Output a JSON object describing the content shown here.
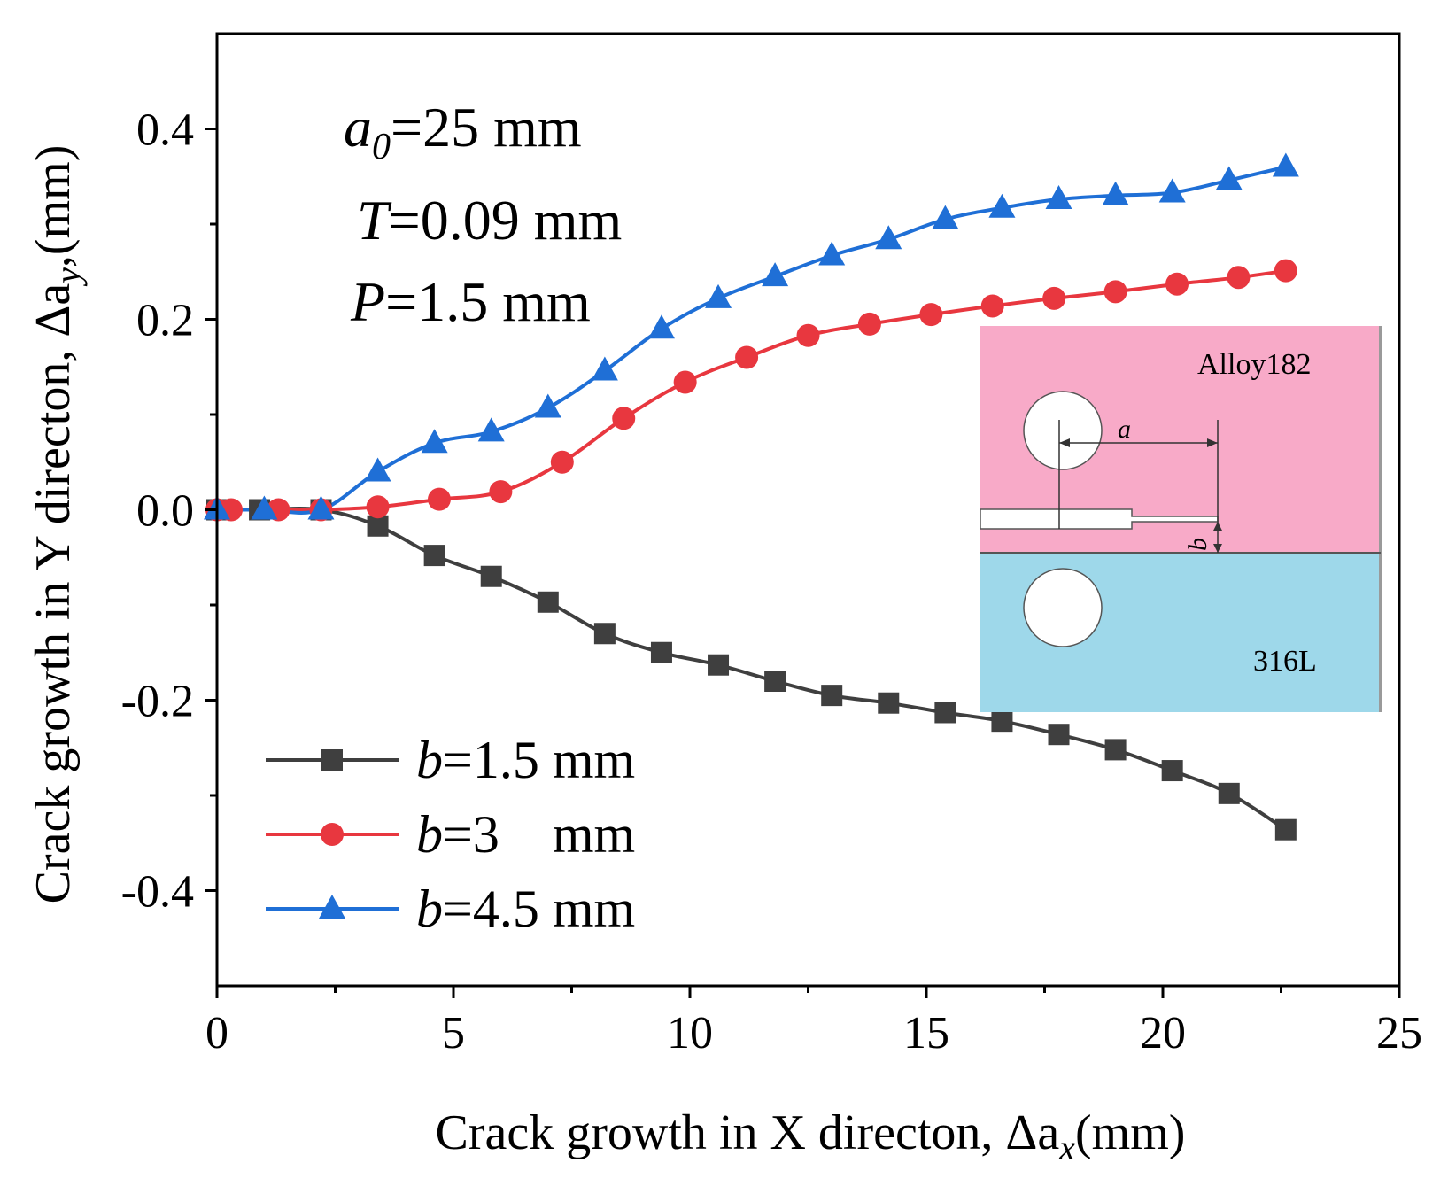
{
  "chart_data": {
    "type": "line",
    "xlabel": "Crack growth in X directon, Δa",
    "xlabel_sub": "x",
    "xlabel_unit": "(mm)",
    "ylabel": "Crack growth in Y directon, Δa",
    "ylabel_sub": "y",
    "ylabel_unit": ",(mm)",
    "xlim": [
      0,
      25
    ],
    "ylim": [
      -0.5,
      0.5
    ],
    "x_ticks": [
      0,
      5,
      10,
      15,
      20,
      25
    ],
    "x_tick_labels": [
      "0",
      "5",
      "10",
      "15",
      "20",
      "25"
    ],
    "y_ticks": [
      -0.4,
      -0.2,
      0.0,
      0.2,
      0.4
    ],
    "y_tick_labels": [
      "-0.4",
      "-0.2",
      "0.0",
      "0.2",
      "0.4"
    ],
    "x_minor_ticks": [
      2.5,
      7.5,
      12.5,
      17.5,
      22.5
    ],
    "y_minor_ticks": [
      -0.3,
      -0.1,
      0.1,
      0.3
    ],
    "legend_position": "bottom-left",
    "series": [
      {
        "name": "b=1.5 mm",
        "legend_var": "b",
        "legend_rest": "=1.5 mm",
        "color": "#3f3f3f",
        "marker": "square",
        "x": [
          0,
          0.9,
          2.2,
          3.4,
          4.6,
          5.8,
          7.0,
          8.2,
          9.4,
          10.6,
          11.8,
          13.0,
          14.2,
          15.4,
          16.6,
          17.8,
          19.0,
          20.2,
          21.4,
          22.6
        ],
        "y": [
          0,
          0,
          0,
          -0.017,
          -0.048,
          -0.07,
          -0.097,
          -0.13,
          -0.15,
          -0.163,
          -0.18,
          -0.195,
          -0.203,
          -0.213,
          -0.222,
          -0.236,
          -0.252,
          -0.274,
          -0.298,
          -0.336
        ]
      },
      {
        "name": "b=3 mm",
        "legend_var": "b",
        "legend_rest": "=3    mm",
        "color": "#e8373f",
        "marker": "circle",
        "x": [
          0,
          0.3,
          1.3,
          2.2,
          3.4,
          4.7,
          6.0,
          7.3,
          8.6,
          9.9,
          11.2,
          12.5,
          13.8,
          15.1,
          16.4,
          17.7,
          19.0,
          20.3,
          21.6,
          22.6
        ],
        "y": [
          0,
          0,
          0,
          0,
          0.003,
          0.011,
          0.019,
          0.05,
          0.096,
          0.134,
          0.16,
          0.183,
          0.195,
          0.205,
          0.214,
          0.222,
          0.229,
          0.237,
          0.244,
          0.251
        ]
      },
      {
        "name": "b=4.5 mm",
        "legend_var": "b",
        "legend_rest": "=4.5 mm",
        "color": "#1f6fd6",
        "marker": "triangle",
        "x": [
          0,
          1.0,
          2.2,
          3.4,
          4.6,
          5.8,
          7.0,
          8.2,
          9.4,
          10.6,
          11.8,
          13.0,
          14.2,
          15.4,
          16.6,
          17.8,
          19.0,
          20.2,
          21.4,
          22.6
        ],
        "y": [
          0,
          0,
          0,
          0.04,
          0.07,
          0.082,
          0.107,
          0.146,
          0.19,
          0.222,
          0.245,
          0.267,
          0.284,
          0.305,
          0.317,
          0.326,
          0.33,
          0.333,
          0.346,
          0.36
        ]
      }
    ],
    "annotations": [
      {
        "var": "a",
        "sub": "0",
        "rest": "=25 mm"
      },
      {
        "var": "T",
        "sub": "",
        "rest": "=0.09 mm"
      },
      {
        "var": "P",
        "sub": "",
        "rest": "=1.5 mm"
      }
    ],
    "inset": {
      "top_material": "Alloy182",
      "bottom_material": "316L",
      "top_color": "#f8aac8",
      "bottom_color": "#9ed8ea",
      "dim_a": "a",
      "dim_b": "b"
    }
  }
}
